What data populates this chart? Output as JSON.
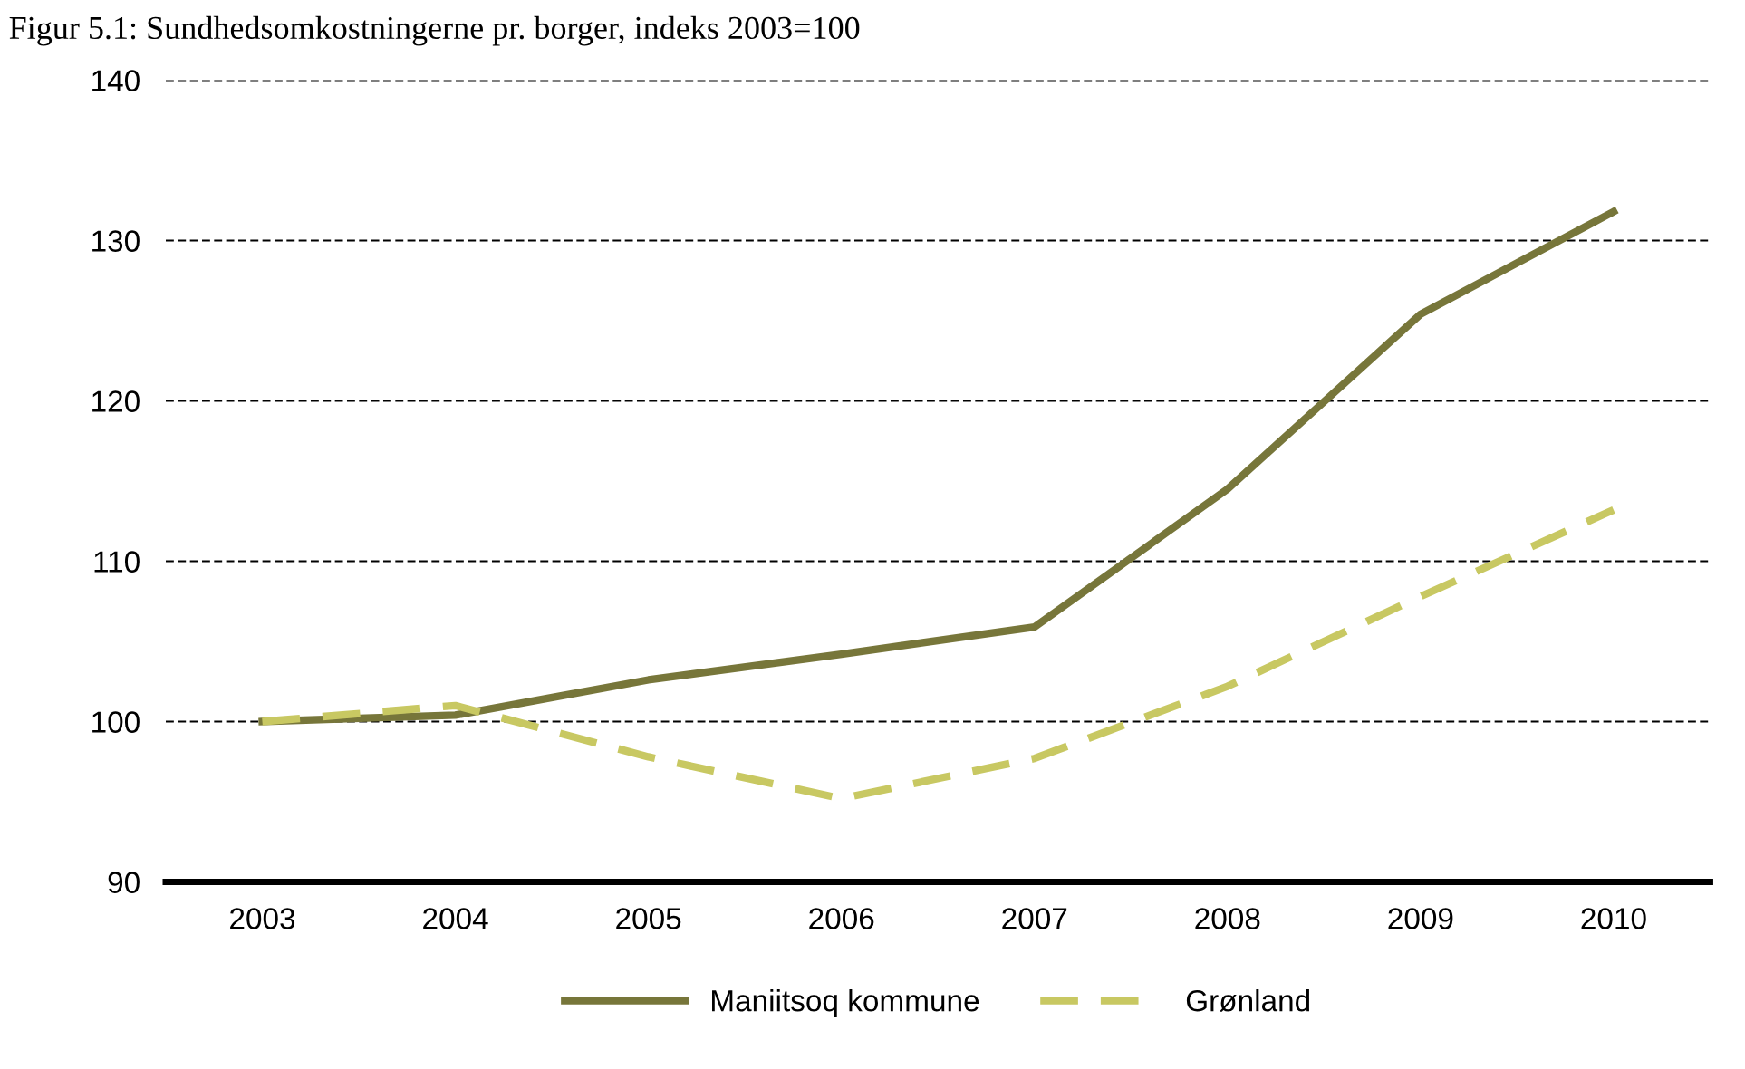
{
  "chart_data": {
    "type": "line",
    "title": "Figur 5.1: Sundhedsomkostningerne pr. borger, indeks 2003=100",
    "categories": [
      "2003",
      "2004",
      "2005",
      "2006",
      "2007",
      "2008",
      "2009",
      "2010"
    ],
    "series": [
      {
        "name": "Maniitsoq kommune",
        "color": "#77763a",
        "line_style": "solid",
        "values": [
          100,
          100.4,
          102.6,
          104.2,
          105.9,
          114.5,
          125.4,
          131.8
        ]
      },
      {
        "name": "Grønland",
        "color": "#c8c862",
        "line_style": "dashed",
        "values": [
          100,
          101,
          97.8,
          95.2,
          97.7,
          102.2,
          107.8,
          113.2
        ]
      }
    ],
    "ylim": [
      90,
      140
    ],
    "yticks": [
      90,
      100,
      110,
      120,
      130,
      140
    ],
    "grid": "y",
    "legend": "bottom",
    "marker": "none"
  }
}
